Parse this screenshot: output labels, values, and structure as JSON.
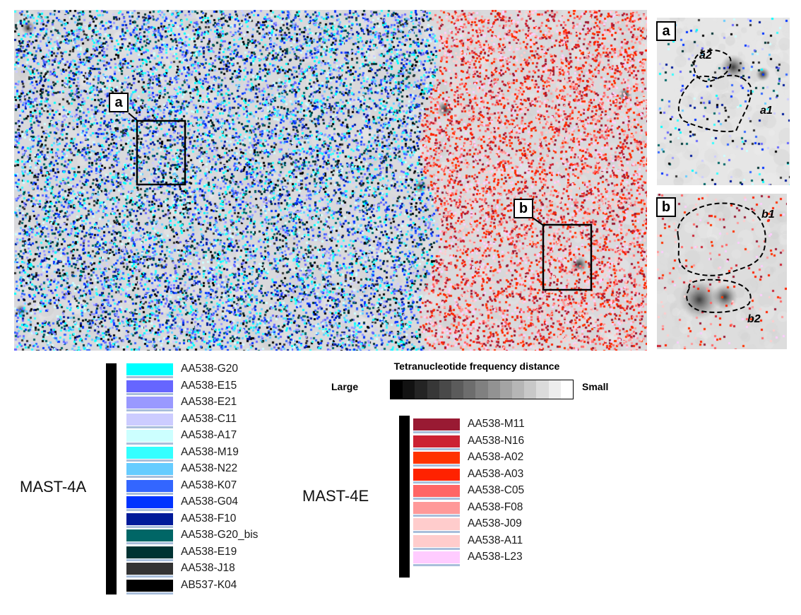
{
  "main_callouts": {
    "a": "a",
    "b": "b"
  },
  "insets": {
    "a": {
      "label": "a",
      "regions": [
        "a2",
        "a1"
      ]
    },
    "b": {
      "label": "b",
      "regions": [
        "b1",
        "b2"
      ]
    }
  },
  "legend": {
    "mast4a": {
      "title": "MAST-4A",
      "items": [
        {
          "label": "AA538-G20",
          "color": "#00ffff"
        },
        {
          "label": "AA538-E15",
          "color": "#6666ff"
        },
        {
          "label": "AA538-E21",
          "color": "#9999ff"
        },
        {
          "label": "AA538-C11",
          "color": "#ccccff"
        },
        {
          "label": "AA538-A17",
          "color": "#ccffff"
        },
        {
          "label": "AA538-M19",
          "color": "#33ffff"
        },
        {
          "label": "AA538-N22",
          "color": "#66ccff"
        },
        {
          "label": "AA538-K07",
          "color": "#3366ff"
        },
        {
          "label": "AA538-G04",
          "color": "#0033ff"
        },
        {
          "label": "AA538-F10",
          "color": "#001a99"
        },
        {
          "label": "AA538-G20_bis",
          "color": "#006666"
        },
        {
          "label": "AA538-E19",
          "color": "#003333"
        },
        {
          "label": "AA538-J18",
          "color": "#333333"
        },
        {
          "label": "AB537-K04",
          "color": "#000000"
        }
      ]
    },
    "mast4e": {
      "title": "MAST-4E",
      "items": [
        {
          "label": "AA538-M11",
          "color": "#991a33"
        },
        {
          "label": "AA538-N16",
          "color": "#cc2233"
        },
        {
          "label": "AA538-A02",
          "color": "#ff3300"
        },
        {
          "label": "AA538-A03",
          "color": "#ff2200"
        },
        {
          "label": "AA538-C05",
          "color": "#ff6666"
        },
        {
          "label": "AA538-F08",
          "color": "#ff9999"
        },
        {
          "label": "AA538-J09",
          "color": "#ffcccc"
        },
        {
          "label": "AA538-A11",
          "color": "#ffcccc"
        },
        {
          "label": "AA538-L23",
          "color": "#ffccff"
        }
      ]
    }
  },
  "tetranucleotide": {
    "title": "Tetranucleotide frequency distance",
    "large_label": "Large",
    "small_label": "Small",
    "steps": 15
  }
}
